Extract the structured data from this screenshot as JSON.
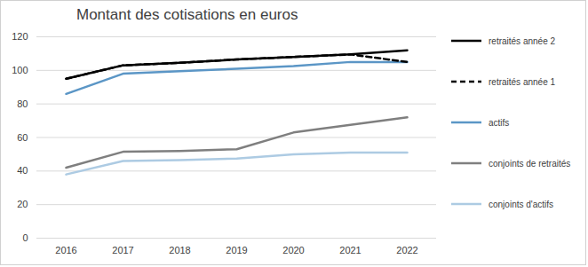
{
  "chart_data": {
    "type": "line",
    "title": "Montant des cotisations en euros",
    "categories": [
      "2016",
      "2017",
      "2018",
      "2019",
      "2020",
      "2021",
      "2022"
    ],
    "series": [
      {
        "name": "retraités année 2",
        "color": "#000000",
        "line_style": "solid",
        "values": [
          95,
          103,
          104.5,
          106.5,
          108,
          109.5,
          112
        ]
      },
      {
        "name": "retraités année 1",
        "color": "#000000",
        "line_style": "dashed",
        "values": [
          95,
          103,
          104.5,
          106.5,
          108,
          109.5,
          105
        ]
      },
      {
        "name": "actifs",
        "color": "#5b96c6",
        "line_style": "solid",
        "values": [
          86,
          98,
          99.5,
          101,
          102.5,
          105,
          105
        ]
      },
      {
        "name": "conjoints de retraités",
        "color": "#7f7f7f",
        "line_style": "solid",
        "values": [
          42,
          51.5,
          52,
          53,
          63,
          67.5,
          72
        ]
      },
      {
        "name": "conjoints d'actifs",
        "color": "#adcbe3",
        "line_style": "solid",
        "values": [
          38,
          46,
          46.5,
          47.5,
          50,
          51,
          51
        ]
      }
    ],
    "ylim": [
      0,
      120
    ],
    "yticks": [
      0,
      20,
      40,
      60,
      80,
      100,
      120
    ],
    "grid": true,
    "legend": "right"
  }
}
